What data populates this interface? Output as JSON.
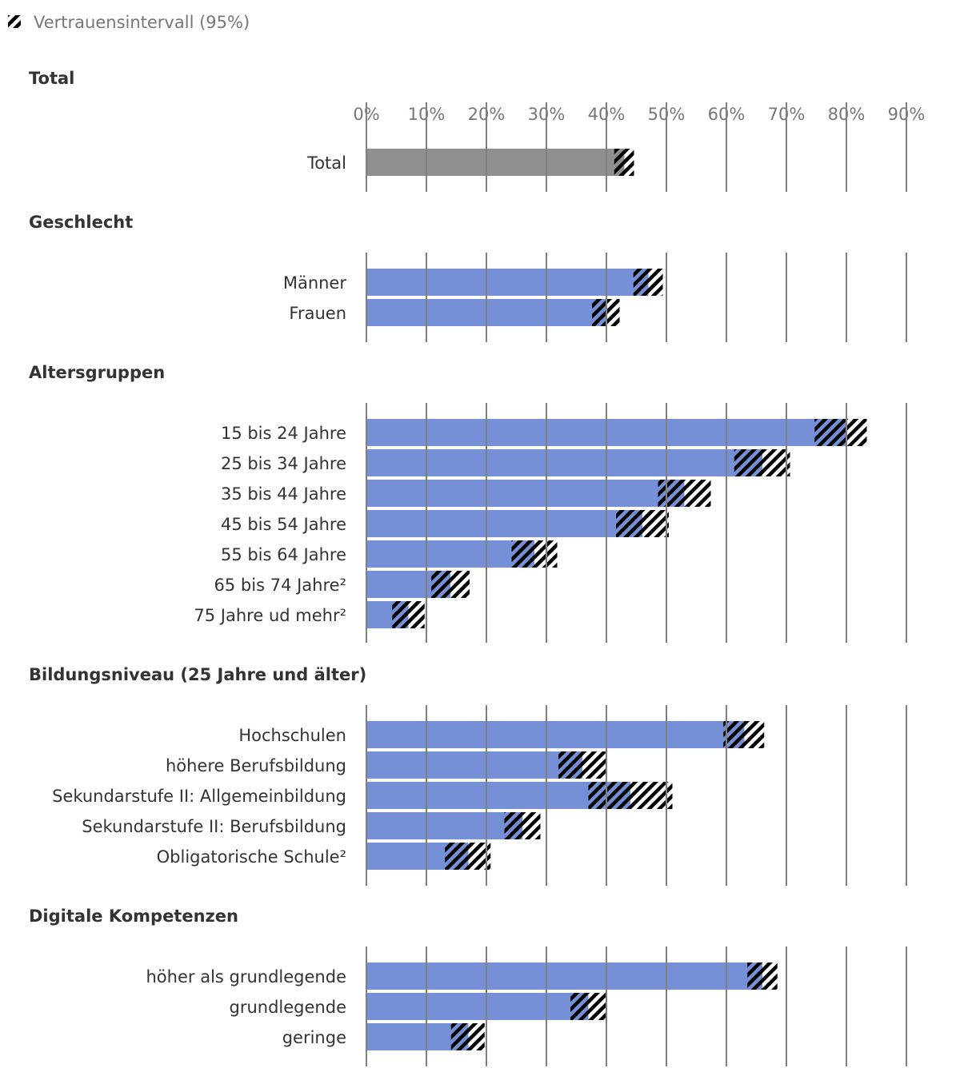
{
  "legend": {
    "ci_label": "Vertrauensintervall (95%)"
  },
  "chart_data": {
    "type": "bar",
    "orientation": "horizontal",
    "x_ticks": [
      "0%",
      "10%",
      "20%",
      "30%",
      "40%",
      "50%",
      "60%",
      "70%",
      "80%",
      "90%"
    ],
    "xlim": [
      0,
      90
    ],
    "grid": true,
    "legend_position": "top-left",
    "colors": {
      "total": "#8f8f8f",
      "group": "#7590d6",
      "hatch": "#000000"
    },
    "groups": [
      {
        "title": "Total",
        "categories": [
          {
            "label": "Total",
            "value": 43,
            "ci": [
              41.3,
              44.6
            ]
          }
        ]
      },
      {
        "title": "Geschlecht",
        "categories": [
          {
            "label": "Männer",
            "value": 47,
            "ci": [
              44.5,
              49.4
            ]
          },
          {
            "label": "Frauen",
            "value": 40,
            "ci": [
              37.6,
              42.2
            ]
          }
        ]
      },
      {
        "title": "Altersgruppen",
        "categories": [
          {
            "label": "15 bis 24 Jahre",
            "value": 80,
            "ci": [
              74.7,
              83.4
            ]
          },
          {
            "label": "25 bis 34 Jahre",
            "value": 66,
            "ci": [
              61.3,
              70.6
            ]
          },
          {
            "label": "35 bis 44 Jahre",
            "value": 53,
            "ci": [
              48.6,
              57.4
            ]
          },
          {
            "label": "45 bis 54 Jahre",
            "value": 46,
            "ci": [
              41.6,
              50.4
            ]
          },
          {
            "label": "55 bis 64 Jahre",
            "value": 28,
            "ci": [
              24.2,
              31.8
            ]
          },
          {
            "label": "65 bis 74 Jahre²",
            "value": 14,
            "ci": [
              10.8,
              17.2
            ]
          },
          {
            "label": "75 Jahre ud mehr²",
            "value": 7,
            "ci": [
              4.3,
              9.7
            ]
          }
        ]
      },
      {
        "title": "Bildungsniveau (25 Jahre und älter)",
        "categories": [
          {
            "label": "Hochschulen",
            "value": 63,
            "ci": [
              59.5,
              66.3
            ]
          },
          {
            "label": "höhere Berufsbildung",
            "value": 36,
            "ci": [
              32.0,
              40.0
            ]
          },
          {
            "label": "Sekundarstufe II: Allgemeinbildung",
            "value": 44,
            "ci": [
              37.0,
              51.0
            ]
          },
          {
            "label": "Sekundarstufe II: Berufsbildung",
            "value": 26,
            "ci": [
              23.0,
              29.0
            ]
          },
          {
            "label": "Obligatorische Schule²",
            "value": 17,
            "ci": [
              13.1,
              20.7
            ]
          }
        ]
      },
      {
        "title": "Digitale Kompetenzen",
        "categories": [
          {
            "label": "höher als grundlegende",
            "value": 66,
            "ci": [
              63.5,
              68.5
            ]
          },
          {
            "label": "grundlegende",
            "value": 37,
            "ci": [
              34.0,
              40.0
            ]
          },
          {
            "label": "geringe",
            "value": 17,
            "ci": [
              14.1,
              19.7
            ]
          }
        ]
      }
    ]
  }
}
